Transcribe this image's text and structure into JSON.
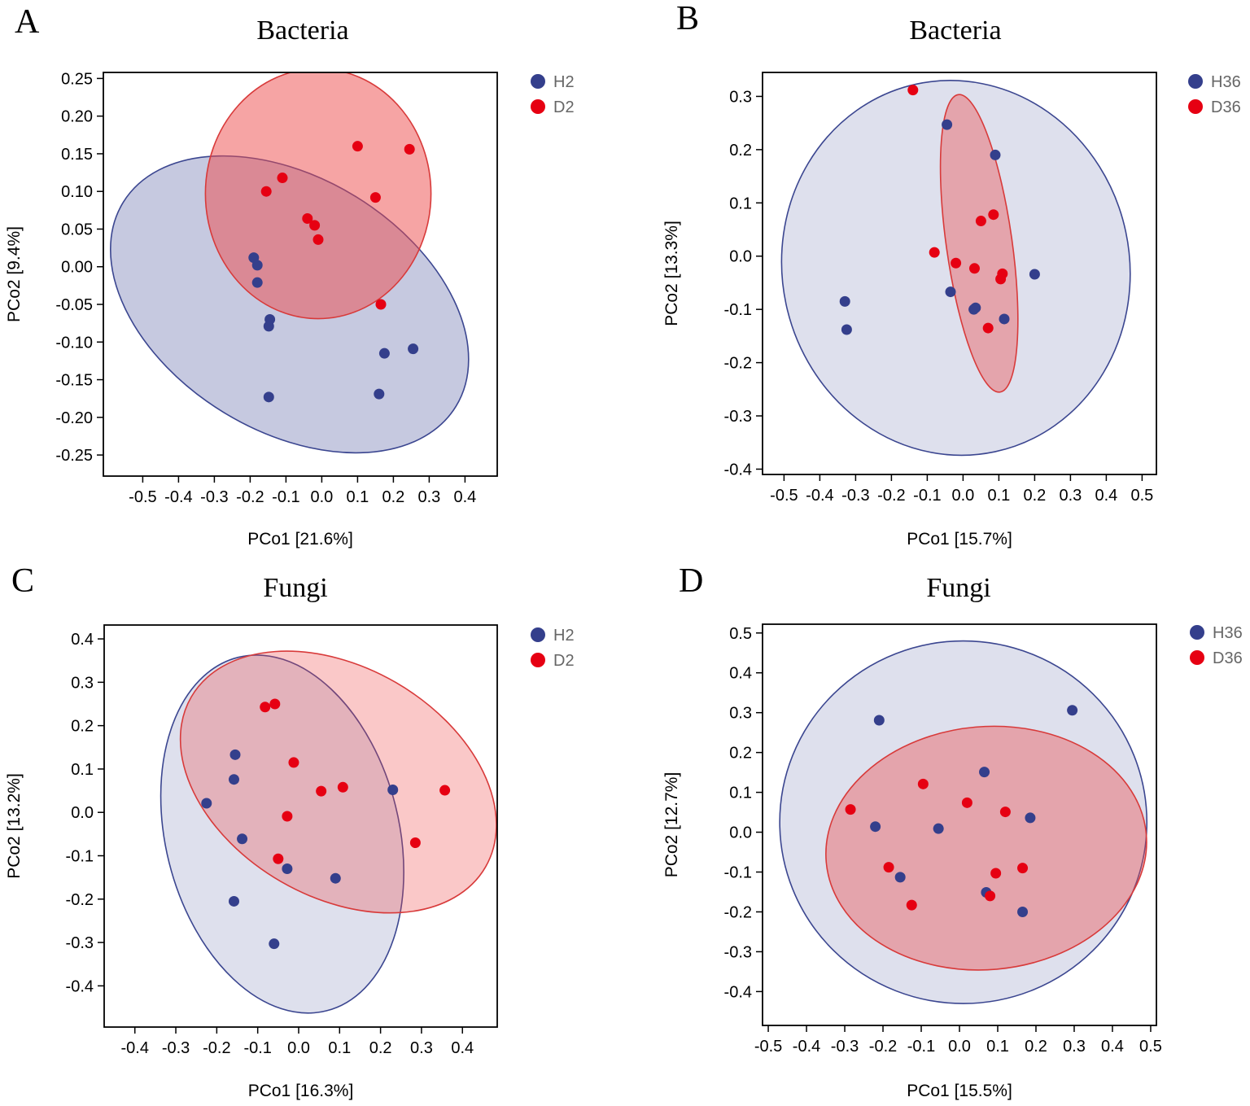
{
  "colors": {
    "h_dot": "#343f8c",
    "d_dot": "#e60012",
    "h_ellipse_stroke": "#3b4690",
    "d_ellipse_stroke": "#d83a3a"
  },
  "chart_data": [
    {
      "type": "scatter",
      "panel_letter": "A",
      "title": "Bacteria",
      "xlabel": "PCo1 [21.6%]",
      "ylabel": "PCo2 [9.4%]",
      "xlim": [
        -0.61,
        0.49
      ],
      "ylim": [
        -0.278,
        0.258
      ],
      "xticks": [
        -0.5,
        -0.4,
        -0.3,
        -0.2,
        -0.1,
        0.0,
        0.1,
        0.2,
        0.3,
        0.4
      ],
      "xtick_labels": [
        "-0.5",
        "-0.4",
        "-0.3",
        "-0.2",
        "-0.1",
        "0.0",
        "0.1",
        "0.2",
        "0.3",
        "0.4"
      ],
      "yticks": [
        0.25,
        0.2,
        0.15,
        0.1,
        0.05,
        0.0,
        -0.05,
        -0.1,
        -0.15,
        -0.2,
        -0.25
      ],
      "ytick_labels": [
        "0.25",
        "0.20",
        "0.15",
        "0.10",
        "0.05",
        "0.00",
        "-0.05",
        "-0.10",
        "-0.15",
        "-0.20",
        "-0.25"
      ],
      "legend": [
        "H2",
        "D2"
      ],
      "series": [
        {
          "name": "H2",
          "points": [
            [
              -0.19,
              0.012
            ],
            [
              -0.18,
              0.002
            ],
            [
              -0.18,
              -0.021
            ],
            [
              -0.145,
              -0.07
            ],
            [
              -0.148,
              -0.079
            ],
            [
              -0.148,
              -0.173
            ],
            [
              0.175,
              -0.115
            ],
            [
              0.255,
              -0.109
            ],
            [
              0.16,
              -0.169
            ]
          ],
          "ellipse": {
            "cx": -0.09,
            "cy": -0.05,
            "rx": 0.545,
            "ry": 0.168,
            "angle_deg": 31.5,
            "opacity": 0.38
          }
        },
        {
          "name": "D2",
          "points": [
            [
              -0.155,
              0.1
            ],
            [
              -0.11,
              0.118
            ],
            [
              0.1,
              0.16
            ],
            [
              0.245,
              0.156
            ],
            [
              0.15,
              0.092
            ],
            [
              -0.04,
              0.064
            ],
            [
              -0.02,
              0.055
            ],
            [
              -0.01,
              0.036
            ],
            [
              0.165,
              -0.05
            ]
          ],
          "ellipse": {
            "cx": -0.01,
            "cy": 0.097,
            "rx": 0.315,
            "ry": 0.166,
            "angle_deg": 0,
            "opacity": 0.5
          }
        }
      ]
    },
    {
      "type": "scatter",
      "panel_letter": "B",
      "title": "Bacteria",
      "xlabel": "PCo1 [15.7%]",
      "ylabel": "PCo2 [13.3%]",
      "xlim": [
        -0.56,
        0.54
      ],
      "ylim": [
        -0.41,
        0.345
      ],
      "xticks": [
        -0.5,
        -0.4,
        -0.3,
        -0.2,
        -0.1,
        0.0,
        0.1,
        0.2,
        0.3,
        0.4,
        0.5
      ],
      "xtick_labels": [
        "-0.5",
        "-0.4",
        "-0.3",
        "-0.2",
        "-0.1",
        "0.0",
        "0.1",
        "0.2",
        "0.3",
        "0.4",
        "0.5"
      ],
      "yticks": [
        0.3,
        0.2,
        0.1,
        0.0,
        -0.1,
        -0.2,
        -0.3,
        -0.4
      ],
      "ytick_labels": [
        "0.3",
        "0.2",
        "0.1",
        "0.0",
        "-0.1",
        "-0.2",
        "-0.3",
        "-0.4"
      ],
      "legend": [
        "H36",
        "D36"
      ],
      "series": [
        {
          "name": "H36",
          "points": [
            [
              -0.33,
              -0.085
            ],
            [
              -0.325,
              -0.138
            ],
            [
              -0.045,
              0.247
            ],
            [
              0.09,
              0.19
            ],
            [
              0.2,
              -0.034
            ],
            [
              -0.035,
              -0.067
            ],
            [
              0.03,
              -0.1
            ],
            [
              0.035,
              -0.097
            ],
            [
              0.115,
              -0.118
            ]
          ],
          "ellipse": {
            "cx": -0.02,
            "cy": -0.022,
            "rx": 0.485,
            "ry": 0.353,
            "angle_deg": -12,
            "opacity": 0.22
          }
        },
        {
          "name": "D36",
          "points": [
            [
              -0.14,
              0.312
            ],
            [
              0.05,
              0.066
            ],
            [
              0.085,
              0.078
            ],
            [
              -0.08,
              0.007
            ],
            [
              -0.02,
              -0.013
            ],
            [
              0.032,
              -0.023
            ],
            [
              0.11,
              -0.033
            ],
            [
              0.105,
              -0.043
            ],
            [
              0.07,
              -0.135
            ]
          ],
          "ellipse": {
            "cx": 0.045,
            "cy": 0.024,
            "rx": 0.092,
            "ry": 0.282,
            "angle_deg": -8,
            "opacity": 0.4
          }
        }
      ]
    },
    {
      "type": "scatter",
      "panel_letter": "C",
      "title": "Fungi",
      "xlabel": "PCo1 [16.3%]",
      "ylabel": "PCo2 [13.2%]",
      "xlim": [
        -0.475,
        0.485
      ],
      "ylim": [
        -0.495,
        0.432
      ],
      "xticks": [
        -0.4,
        -0.3,
        -0.2,
        -0.1,
        0.0,
        0.1,
        0.2,
        0.3,
        0.4
      ],
      "xtick_labels": [
        "-0.4",
        "-0.3",
        "-0.2",
        "-0.1",
        "0.0",
        "0.1",
        "0.2",
        "0.3",
        "0.4"
      ],
      "yticks": [
        0.4,
        0.3,
        0.2,
        0.1,
        0.0,
        -0.1,
        -0.2,
        -0.3,
        -0.4
      ],
      "ytick_labels": [
        "0.4",
        "0.3",
        "0.2",
        "0.1",
        "0.0",
        "-0.1",
        "-0.2",
        "-0.3",
        "-0.4"
      ],
      "legend": [
        "H2",
        "D2"
      ],
      "series": [
        {
          "name": "H2",
          "points": [
            [
              -0.155,
              0.133
            ],
            [
              -0.158,
              0.076
            ],
            [
              -0.225,
              0.021
            ],
            [
              -0.138,
              -0.061
            ],
            [
              -0.028,
              -0.13
            ],
            [
              0.09,
              -0.152
            ],
            [
              0.23,
              0.052
            ],
            [
              -0.158,
              -0.205
            ],
            [
              -0.06,
              -0.303
            ]
          ],
          "ellipse": {
            "cx": -0.04,
            "cy": -0.05,
            "rx": 0.285,
            "ry": 0.42,
            "angle_deg": -14,
            "opacity": 0.22
          }
        },
        {
          "name": "D2",
          "points": [
            [
              -0.082,
              0.243
            ],
            [
              -0.058,
              0.25
            ],
            [
              -0.012,
              0.115
            ],
            [
              0.055,
              0.049
            ],
            [
              0.108,
              0.058
            ],
            [
              -0.028,
              -0.009
            ],
            [
              0.357,
              0.051
            ],
            [
              0.285,
              -0.07
            ],
            [
              -0.05,
              -0.107
            ]
          ],
          "ellipse": {
            "cx": 0.097,
            "cy": 0.07,
            "rx": 0.415,
            "ry": 0.265,
            "angle_deg": 30,
            "opacity": 0.3
          }
        }
      ]
    },
    {
      "type": "scatter",
      "panel_letter": "D",
      "title": "Fungi",
      "xlabel": "PCo1 [15.5%]",
      "ylabel": "PCo2 [12.7%]",
      "xlim": [
        -0.515,
        0.515
      ],
      "ylim": [
        -0.485,
        0.522
      ],
      "xticks": [
        -0.5,
        -0.4,
        -0.3,
        -0.2,
        -0.1,
        0.0,
        0.1,
        0.2,
        0.3,
        0.4,
        0.5
      ],
      "xtick_labels": [
        "-0.5",
        "-0.4",
        "-0.3",
        "-0.2",
        "-0.1",
        "0.0",
        "0.1",
        "0.2",
        "0.3",
        "0.4",
        "0.5"
      ],
      "yticks": [
        0.5,
        0.4,
        0.3,
        0.2,
        0.1,
        0.0,
        -0.1,
        -0.2,
        -0.3,
        -0.4
      ],
      "ytick_labels": [
        "0.5",
        "0.4",
        "0.3",
        "0.2",
        "0.1",
        "0.0",
        "-0.1",
        "-0.2",
        "-0.3",
        "-0.4"
      ],
      "legend": [
        "H36",
        "D36"
      ],
      "series": [
        {
          "name": "H36",
          "points": [
            [
              -0.21,
              0.281
            ],
            [
              0.295,
              0.306
            ],
            [
              0.065,
              0.151
            ],
            [
              0.185,
              0.036
            ],
            [
              -0.22,
              0.014
            ],
            [
              -0.055,
              0.009
            ],
            [
              -0.155,
              -0.113
            ],
            [
              0.07,
              -0.151
            ],
            [
              0.165,
              -0.2
            ]
          ],
          "ellipse": {
            "cx": 0.01,
            "cy": 0.025,
            "rx": 0.48,
            "ry": 0.455,
            "angle_deg": 0,
            "opacity": 0.22
          }
        },
        {
          "name": "D36",
          "points": [
            [
              -0.285,
              0.057
            ],
            [
              -0.095,
              0.121
            ],
            [
              0.02,
              0.074
            ],
            [
              0.12,
              0.051
            ],
            [
              -0.185,
              -0.088
            ],
            [
              -0.125,
              -0.183
            ],
            [
              0.095,
              -0.103
            ],
            [
              0.08,
              -0.16
            ],
            [
              0.165,
              -0.09
            ]
          ],
          "ellipse": {
            "cx": 0.07,
            "cy": -0.04,
            "rx": 0.42,
            "ry": 0.305,
            "angle_deg": -5,
            "opacity": 0.4
          }
        }
      ]
    }
  ]
}
